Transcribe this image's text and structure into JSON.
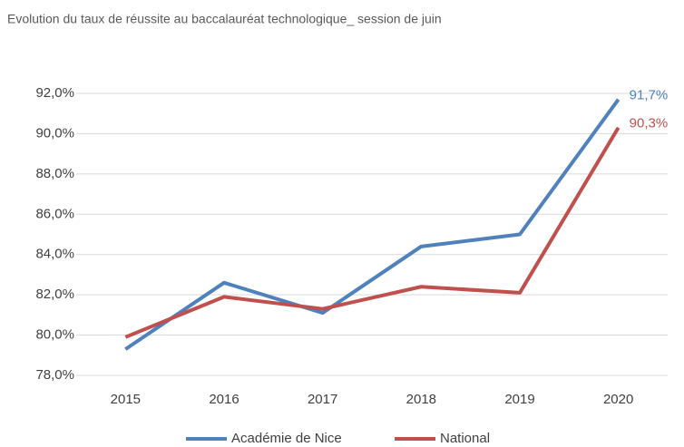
{
  "chart_data": {
    "type": "line",
    "title": "Evolution du taux de réussite au baccalauréat technologique_ session de juin",
    "categories": [
      "2015",
      "2016",
      "2017",
      "2018",
      "2019",
      "2020"
    ],
    "series": [
      {
        "name": "Académie de Nice",
        "color": "#4f81bd",
        "values": [
          79.3,
          82.6,
          81.1,
          84.4,
          85.0,
          91.7
        ],
        "value_labels": [
          null,
          null,
          null,
          null,
          null,
          "91,7%"
        ]
      },
      {
        "name": "National",
        "color": "#c0504d",
        "values": [
          79.9,
          81.9,
          81.3,
          82.4,
          82.1,
          90.3
        ],
        "value_labels": [
          null,
          null,
          null,
          null,
          null,
          "90,3%"
        ]
      }
    ],
    "ylim": [
      78,
      92
    ],
    "yticks": [
      {
        "value": 78,
        "label": "78,0%"
      },
      {
        "value": 80,
        "label": "80,0%"
      },
      {
        "value": 82,
        "label": "82,0%"
      },
      {
        "value": 84,
        "label": "84,0%"
      },
      {
        "value": 86,
        "label": "86,0%"
      },
      {
        "value": 88,
        "label": "88,0%"
      },
      {
        "value": 90,
        "label": "90,0%"
      },
      {
        "value": 92,
        "label": "92,0%"
      }
    ],
    "grid": true,
    "legend": "bottom"
  }
}
